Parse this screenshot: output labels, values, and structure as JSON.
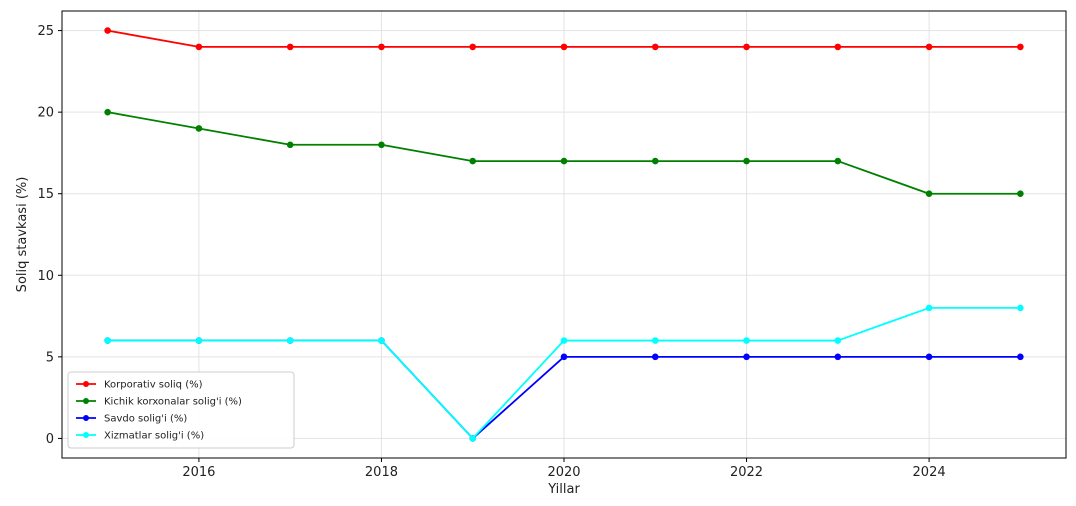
{
  "chart_data": {
    "type": "line",
    "title": "",
    "xlabel": "Yillar",
    "ylabel": "Soliq stavkasi (%)",
    "x": [
      2015,
      2016,
      2017,
      2018,
      2019,
      2020,
      2021,
      2022,
      2023,
      2024,
      2025
    ],
    "xlim": [
      2014.5,
      2025.5
    ],
    "ylim": [
      -1.2,
      26.2
    ],
    "xticks": [
      "2016",
      "2018",
      "2020",
      "2022",
      "2024"
    ],
    "yticks": [
      "0",
      "5",
      "10",
      "15",
      "20",
      "25"
    ],
    "grid": true,
    "legend_position": "lower-left",
    "series": [
      {
        "name": "Korporativ soliq (%)",
        "color": "#ff0000",
        "values": [
          25,
          24,
          24,
          24,
          24,
          24,
          24,
          24,
          24,
          24,
          24
        ]
      },
      {
        "name": "Kichik korxonalar solig'i (%)",
        "color": "#008000",
        "values": [
          20,
          19,
          18,
          18,
          17,
          17,
          17,
          17,
          17,
          15,
          15
        ]
      },
      {
        "name": "Savdo solig'i (%)",
        "color": "#0000ff",
        "values": [
          6,
          6,
          6,
          6,
          0,
          5,
          5,
          5,
          5,
          5,
          5
        ]
      },
      {
        "name": "Xizmatlar solig'i (%)",
        "color": "#00ffff",
        "values": [
          6,
          6,
          6,
          6,
          0,
          6,
          6,
          6,
          6,
          8,
          8
        ]
      }
    ]
  }
}
